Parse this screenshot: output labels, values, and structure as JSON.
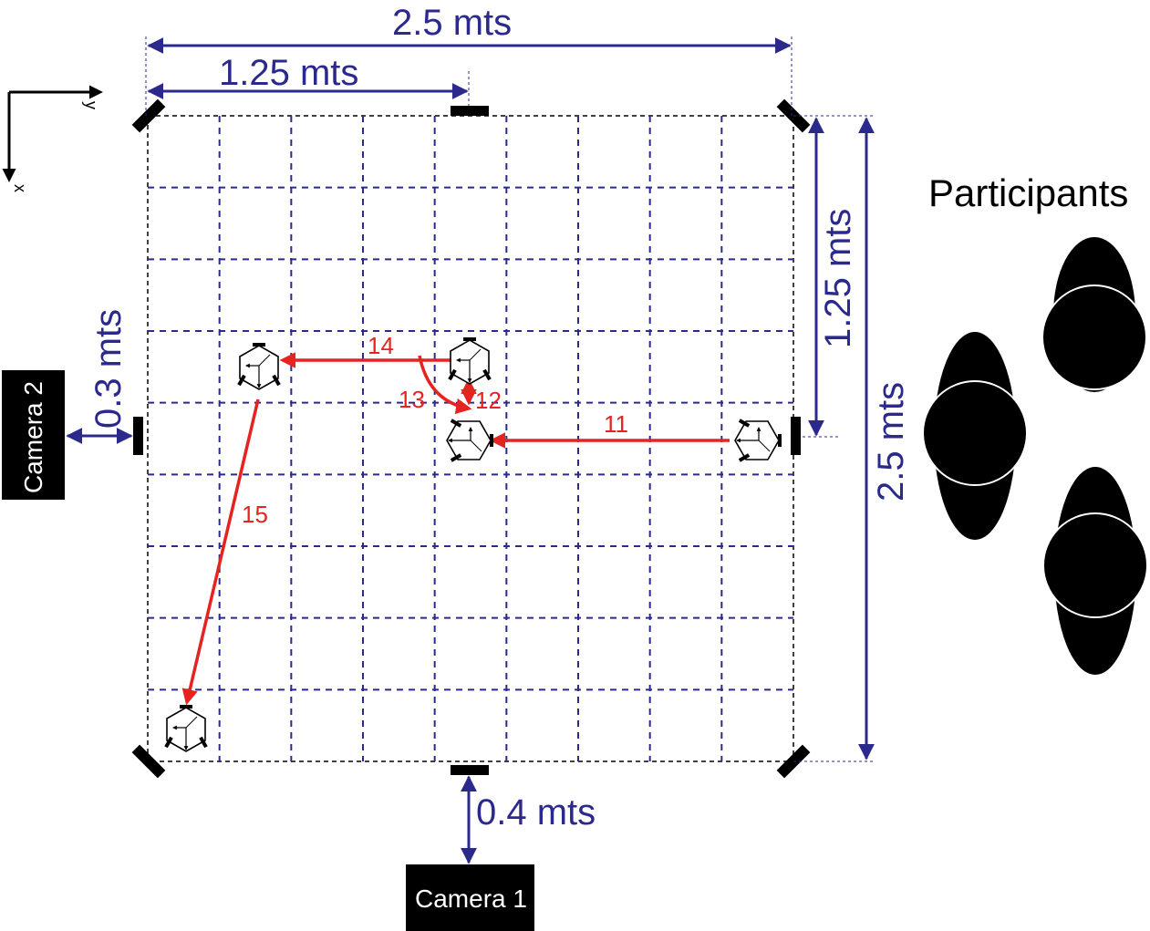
{
  "colors": {
    "dimension": "#2b2a8c",
    "grid": "#2b2a8c",
    "path": "#e52421",
    "marker": "#000000"
  },
  "axes": {
    "x_label": "x",
    "y_label": "y"
  },
  "dimensions": {
    "top_full": "2.5 mts",
    "top_half": "1.25 mts",
    "right_half": "1.25 mts",
    "right_full": "2.5 mts",
    "left_offset": "0.3 mts",
    "bottom_offset": "0.4 mts"
  },
  "cameras": {
    "camera1": "Camera 1",
    "camera2": "Camera 2"
  },
  "participants_label": "Participants",
  "paths": [
    {
      "id": "11",
      "label": "11"
    },
    {
      "id": "12",
      "label": "12"
    },
    {
      "id": "13",
      "label": "13"
    },
    {
      "id": "14",
      "label": "14"
    },
    {
      "id": "15",
      "label": "15"
    }
  ],
  "grid": {
    "rows": 9,
    "cols": 9
  }
}
